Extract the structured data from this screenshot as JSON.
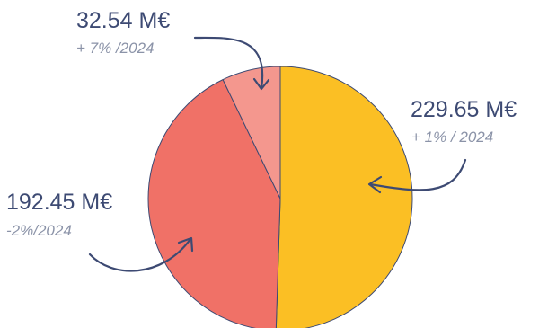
{
  "chart_data": {
    "type": "pie",
    "slices": [
      {
        "value": 229.65,
        "value_label": "229.65 M€",
        "change_label": "+ 1% / 2024",
        "color": "#fbbf24"
      },
      {
        "value": 192.45,
        "value_label": "192.45 M€",
        "change_label": "-2%/2024",
        "color": "#f07167"
      },
      {
        "value": 32.54,
        "value_label": "32.54 M€",
        "change_label": "+ 7% /2024",
        "color": "#f4978e"
      }
    ],
    "start_angle_deg": 0,
    "direction": "clockwise",
    "outline_color": "#3d4a73",
    "label_color": "#3d4a73",
    "sublabel_color": "#8b93a8"
  }
}
